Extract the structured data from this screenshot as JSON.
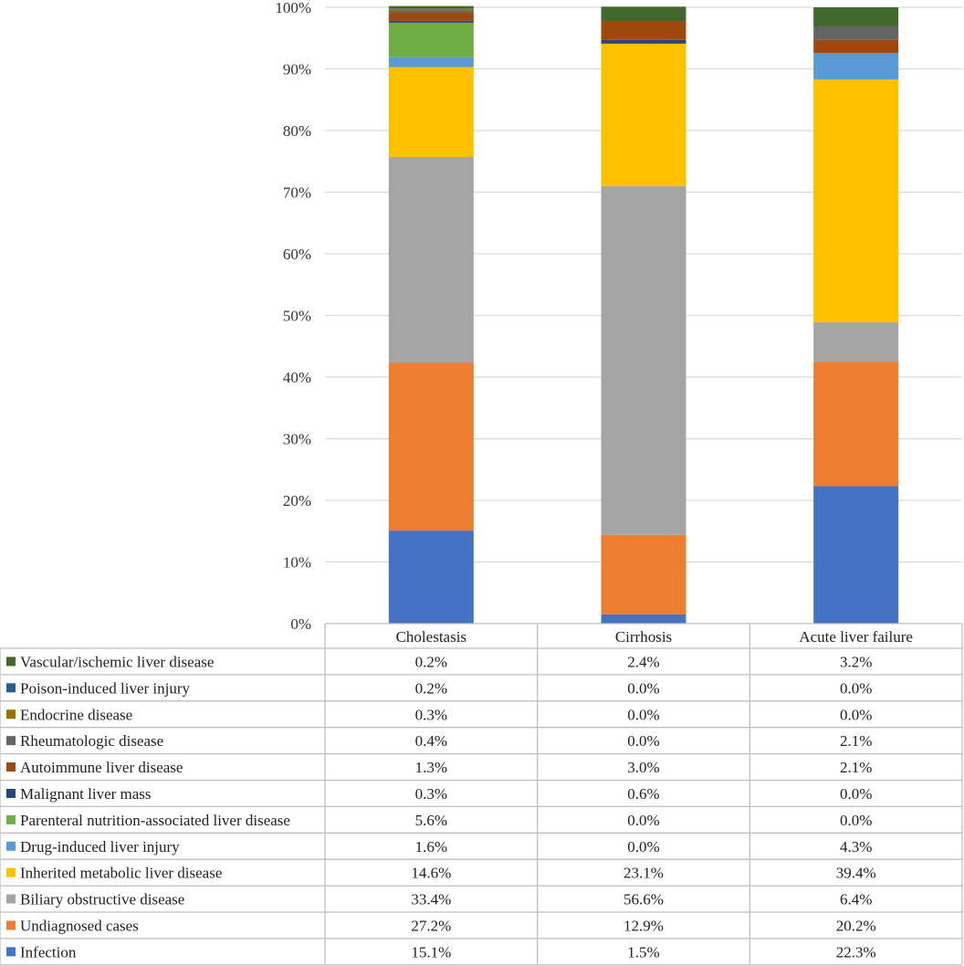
{
  "chart_data": {
    "type": "bar",
    "stacked": true,
    "title": "",
    "xlabel": "",
    "ylabel": "",
    "ylim": [
      0,
      100
    ],
    "yticks": [
      "0%",
      "10%",
      "20%",
      "30%",
      "40%",
      "50%",
      "60%",
      "70%",
      "80%",
      "90%",
      "100%"
    ],
    "categories": [
      "Cholestasis",
      "Cirrhosis",
      "Acute liver failure"
    ],
    "series": [
      {
        "name": "Infection",
        "color": "#4472C4",
        "values": [
          15.1,
          1.5,
          22.3
        ],
        "labels": [
          "15.1%",
          "1.5%",
          "22.3%"
        ]
      },
      {
        "name": "Undiagnosed cases",
        "color": "#ED7D31",
        "values": [
          27.2,
          12.9,
          20.2
        ],
        "labels": [
          "27.2%",
          "12.9%",
          "20.2%"
        ]
      },
      {
        "name": "Biliary obstructive disease",
        "color": "#A5A5A5",
        "values": [
          33.4,
          56.6,
          6.4
        ],
        "labels": [
          "33.4%",
          "56.6%",
          "6.4%"
        ]
      },
      {
        "name": "Inherited metabolic liver disease",
        "color": "#FFC000",
        "values": [
          14.6,
          23.1,
          39.4
        ],
        "labels": [
          "14.6%",
          "23.1%",
          "39.4%"
        ]
      },
      {
        "name": "Drug-induced liver injury",
        "color": "#5B9BD5",
        "values": [
          1.6,
          0.0,
          4.3
        ],
        "labels": [
          "1.6%",
          "0.0%",
          "4.3%"
        ]
      },
      {
        "name": "Parenteral nutrition-associated liver disease",
        "color": "#70AD47",
        "values": [
          5.6,
          0.0,
          0.0
        ],
        "labels": [
          "5.6%",
          "0.0%",
          "0.0%"
        ]
      },
      {
        "name": "Malignant liver mass",
        "color": "#264478",
        "values": [
          0.3,
          0.6,
          0.0
        ],
        "labels": [
          "0.3%",
          "0.6%",
          "0.0%"
        ]
      },
      {
        "name": "Autoimmune liver disease",
        "color": "#9E480E",
        "values": [
          1.3,
          3.0,
          2.1
        ],
        "labels": [
          "1.3%",
          "3.0%",
          "2.1%"
        ]
      },
      {
        "name": "Rheumatologic disease",
        "color": "#636363",
        "values": [
          0.4,
          0.0,
          2.1
        ],
        "labels": [
          "0.4%",
          "0.0%",
          "2.1%"
        ]
      },
      {
        "name": "Endocrine disease",
        "color": "#997300",
        "values": [
          0.3,
          0.0,
          0.0
        ],
        "labels": [
          "0.3%",
          "0.0%",
          "0.0%"
        ]
      },
      {
        "name": "Poison-induced liver injury",
        "color": "#255E91",
        "values": [
          0.2,
          0.0,
          0.0
        ],
        "labels": [
          "0.2%",
          "0.0%",
          "0.0%"
        ]
      },
      {
        "name": "Vascular/ischemic liver disease",
        "color": "#43682B",
        "values": [
          0.2,
          2.4,
          3.2
        ],
        "labels": [
          "0.2%",
          "2.4%",
          "3.2%"
        ]
      }
    ]
  }
}
